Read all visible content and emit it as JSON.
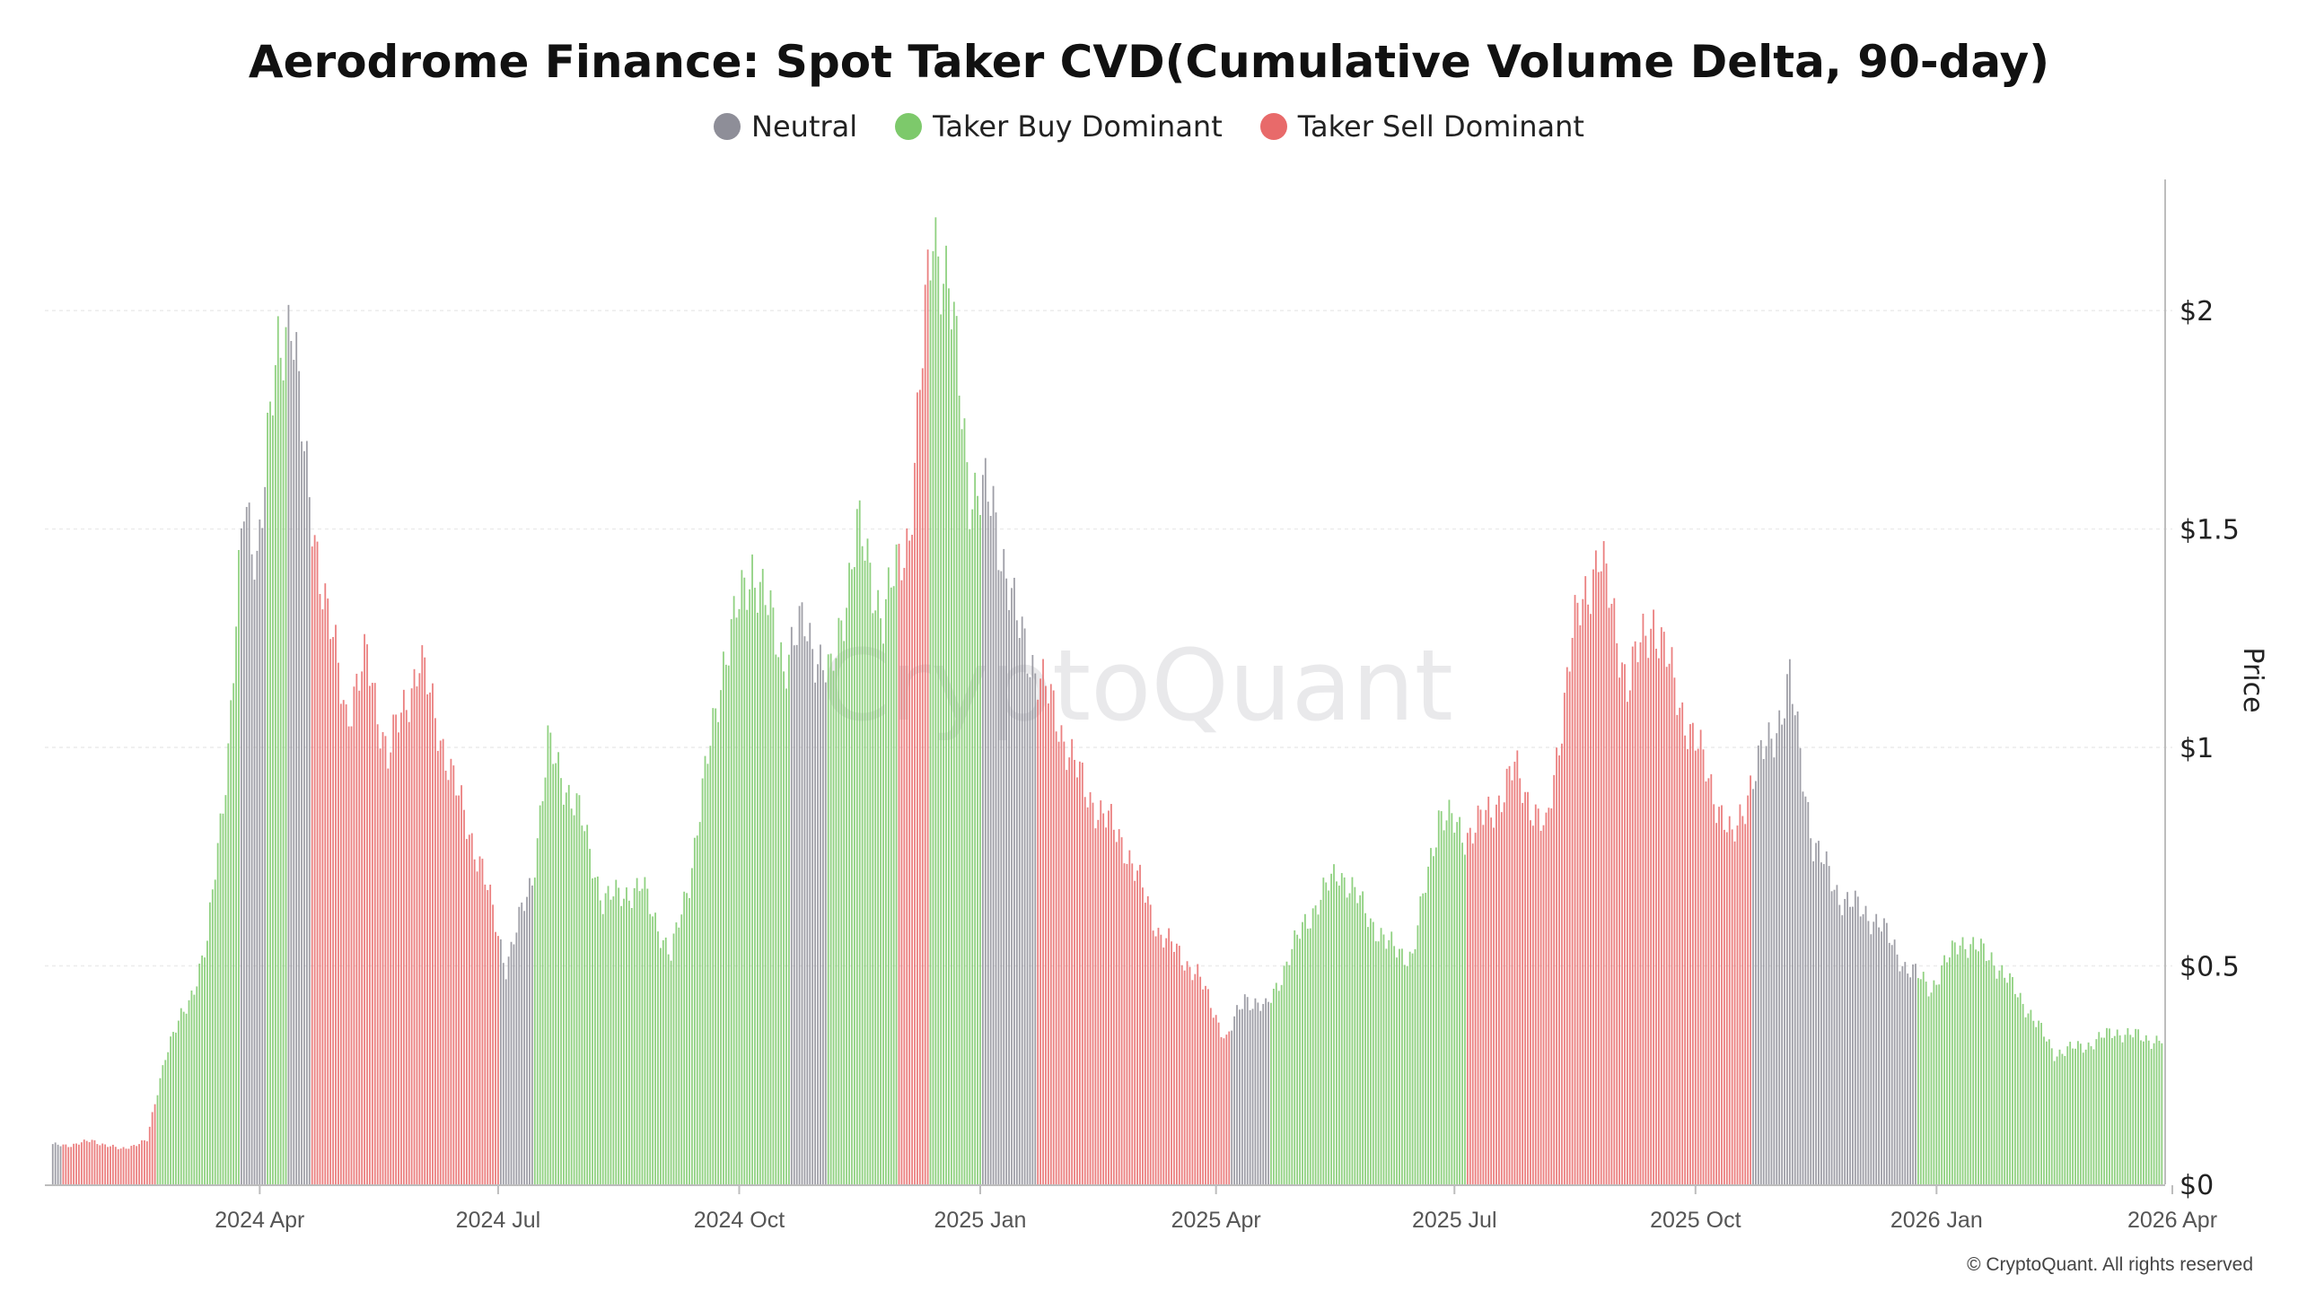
{
  "chart_data": {
    "type": "bar",
    "title": "Aerodrome Finance: Spot Taker CVD(Cumulative Volume Delta, 90-day)",
    "ylabel": "Price",
    "ylim": [
      0,
      2.3
    ],
    "yticks": [
      {
        "value": 0,
        "label": "$0"
      },
      {
        "value": 0.5,
        "label": "$0.5"
      },
      {
        "value": 1,
        "label": "$1"
      },
      {
        "value": 1.5,
        "label": "$1.5"
      },
      {
        "value": 2,
        "label": "$2"
      }
    ],
    "xrange": [
      "2024-01-10",
      "2026-04-01"
    ],
    "xticks": [
      {
        "date": "2024-04-01",
        "label": "2024 Apr"
      },
      {
        "date": "2024-07-01",
        "label": "2024 Jul"
      },
      {
        "date": "2024-10-01",
        "label": "2024 Oct"
      },
      {
        "date": "2025-01-01",
        "label": "2025 Jan"
      },
      {
        "date": "2025-04-01",
        "label": "2025 Apr"
      },
      {
        "date": "2025-07-01",
        "label": "2025 Jul"
      },
      {
        "date": "2025-10-01",
        "label": "2025 Oct"
      },
      {
        "date": "2026-01-01",
        "label": "2026 Jan"
      },
      {
        "date": "2026-04-01",
        "label": "2026 Apr"
      }
    ],
    "grid": true,
    "legend_position": "top-center",
    "series": [
      {
        "name": "Neutral",
        "key": "neutral",
        "color": "#8e8e98"
      },
      {
        "name": "Taker Buy Dominant",
        "key": "buy",
        "color": "#7dc96b"
      },
      {
        "name": "Taker Sell Dominant",
        "key": "sell",
        "color": "#e86a6a"
      }
    ],
    "price_keypoints": [
      [
        "2024-01-20",
        0.09
      ],
      [
        "2024-01-28",
        0.1
      ],
      [
        "2024-02-08",
        0.08
      ],
      [
        "2024-02-18",
        0.1
      ],
      [
        "2024-02-25",
        0.3
      ],
      [
        "2024-03-05",
        0.42
      ],
      [
        "2024-03-12",
        0.55
      ],
      [
        "2024-03-20",
        1.0
      ],
      [
        "2024-03-26",
        1.55
      ],
      [
        "2024-03-31",
        1.45
      ],
      [
        "2024-04-08",
        1.9
      ],
      [
        "2024-04-13",
        2.02
      ],
      [
        "2024-04-18",
        1.65
      ],
      [
        "2024-04-27",
        1.3
      ],
      [
        "2024-05-04",
        1.08
      ],
      [
        "2024-05-12",
        1.2
      ],
      [
        "2024-05-20",
        0.98
      ],
      [
        "2024-06-01",
        1.2
      ],
      [
        "2024-06-15",
        0.9
      ],
      [
        "2024-06-25",
        0.72
      ],
      [
        "2024-07-04",
        0.5
      ],
      [
        "2024-07-14",
        0.7
      ],
      [
        "2024-07-20",
        1.0
      ],
      [
        "2024-08-01",
        0.85
      ],
      [
        "2024-08-10",
        0.65
      ],
      [
        "2024-08-25",
        0.68
      ],
      [
        "2024-09-05",
        0.52
      ],
      [
        "2024-09-12",
        0.7
      ],
      [
        "2024-09-25",
        1.2
      ],
      [
        "2024-10-06",
        1.42
      ],
      [
        "2024-10-18",
        1.2
      ],
      [
        "2024-10-26",
        1.28
      ],
      [
        "2024-11-05",
        1.15
      ],
      [
        "2024-11-15",
        1.5
      ],
      [
        "2024-11-25",
        1.3
      ],
      [
        "2024-12-05",
        1.5
      ],
      [
        "2024-12-14",
        2.2
      ],
      [
        "2024-12-20",
        2.05
      ],
      [
        "2024-12-28",
        1.6
      ],
      [
        "2025-01-06",
        1.55
      ],
      [
        "2025-01-15",
        1.28
      ],
      [
        "2025-01-28",
        1.1
      ],
      [
        "2025-02-10",
        0.9
      ],
      [
        "2025-02-25",
        0.78
      ],
      [
        "2025-03-10",
        0.58
      ],
      [
        "2025-03-25",
        0.48
      ],
      [
        "2025-04-05",
        0.33
      ],
      [
        "2025-04-12",
        0.43
      ],
      [
        "2025-04-20",
        0.4
      ],
      [
        "2025-05-05",
        0.6
      ],
      [
        "2025-05-18",
        0.72
      ],
      [
        "2025-06-05",
        0.55
      ],
      [
        "2025-06-15",
        0.52
      ],
      [
        "2025-06-25",
        0.85
      ],
      [
        "2025-07-05",
        0.8
      ],
      [
        "2025-07-15",
        0.85
      ],
      [
        "2025-07-24",
        0.95
      ],
      [
        "2025-08-05",
        0.8
      ],
      [
        "2025-08-15",
        1.25
      ],
      [
        "2025-08-25",
        1.45
      ],
      [
        "2025-09-05",
        1.15
      ],
      [
        "2025-09-15",
        1.3
      ],
      [
        "2025-09-25",
        1.1
      ],
      [
        "2025-10-05",
        0.95
      ],
      [
        "2025-10-15",
        0.78
      ],
      [
        "2025-10-22",
        0.92
      ],
      [
        "2025-11-01",
        1.05
      ],
      [
        "2025-11-06",
        1.15
      ],
      [
        "2025-11-15",
        0.78
      ],
      [
        "2025-11-25",
        0.66
      ],
      [
        "2025-12-10",
        0.6
      ],
      [
        "2025-12-20",
        0.5
      ],
      [
        "2025-12-30",
        0.45
      ],
      [
        "2026-01-10",
        0.56
      ],
      [
        "2026-01-22",
        0.52
      ],
      [
        "2026-02-05",
        0.4
      ],
      [
        "2026-02-15",
        0.3
      ],
      [
        "2026-02-28",
        0.32
      ],
      [
        "2026-03-10",
        0.35
      ],
      [
        "2026-03-25",
        0.33
      ]
    ],
    "regime_segments": [
      [
        "2024-01-13",
        "2024-01-16",
        "neutral"
      ],
      [
        "2024-01-17",
        "2024-02-21",
        "sell"
      ],
      [
        "2024-02-22",
        "2024-03-24",
        "buy"
      ],
      [
        "2024-03-25",
        "2024-04-03",
        "neutral"
      ],
      [
        "2024-04-04",
        "2024-04-11",
        "buy"
      ],
      [
        "2024-04-12",
        "2024-04-20",
        "neutral"
      ],
      [
        "2024-04-21",
        "2024-07-01",
        "sell"
      ],
      [
        "2024-07-02",
        "2024-07-14",
        "neutral"
      ],
      [
        "2024-07-15",
        "2024-10-20",
        "buy"
      ],
      [
        "2024-10-21",
        "2024-11-03",
        "neutral"
      ],
      [
        "2024-11-04",
        "2024-11-30",
        "buy"
      ],
      [
        "2024-12-01",
        "2024-12-12",
        "sell"
      ],
      [
        "2024-12-13",
        "2025-01-01",
        "buy"
      ],
      [
        "2025-01-02",
        "2025-01-22",
        "neutral"
      ],
      [
        "2025-01-23",
        "2025-04-06",
        "sell"
      ],
      [
        "2025-04-07",
        "2025-04-21",
        "neutral"
      ],
      [
        "2025-04-22",
        "2025-07-05",
        "buy"
      ],
      [
        "2025-07-06",
        "2025-10-22",
        "sell"
      ],
      [
        "2025-10-23",
        "2025-12-24",
        "neutral"
      ],
      [
        "2025-12-25",
        "2026-03-28",
        "buy"
      ]
    ]
  },
  "branding": {
    "watermark": "CryptoQuant",
    "copyright": "© CryptoQuant. All rights reserved"
  }
}
